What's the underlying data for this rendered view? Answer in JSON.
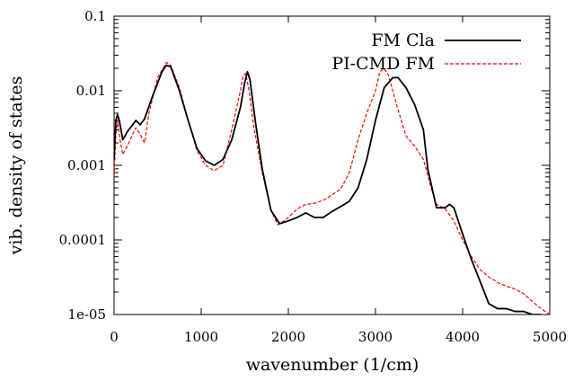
{
  "chart_data": {
    "type": "line",
    "title": "",
    "xlabel": "wavenumber (1/cm)",
    "ylabel": "vib. density of states",
    "xlim": [
      0,
      5000
    ],
    "ylim": [
      1e-05,
      0.1
    ],
    "yscale": "log",
    "grid": false,
    "legend_position": "top-right",
    "x_ticks": [
      0,
      1000,
      2000,
      3000,
      4000,
      5000
    ],
    "x_tick_labels": [
      "0",
      "1000",
      "2000",
      "3000",
      "4000",
      "5000"
    ],
    "y_ticks": [
      1e-05,
      0.0001,
      0.001,
      0.01,
      0.1
    ],
    "y_tick_labels": [
      "1e-05",
      "0.0001",
      "0.001",
      "0.01",
      "0.1"
    ],
    "series": [
      {
        "name": "FM Cla",
        "color": "#000000",
        "style": "solid",
        "points": [
          [
            0,
            0.0012
          ],
          [
            20,
            0.004
          ],
          [
            40,
            0.0048
          ],
          [
            60,
            0.004
          ],
          [
            100,
            0.0022
          ],
          [
            150,
            0.0028
          ],
          [
            250,
            0.004
          ],
          [
            300,
            0.0035
          ],
          [
            350,
            0.0042
          ],
          [
            450,
            0.009
          ],
          [
            550,
            0.018
          ],
          [
            600,
            0.022
          ],
          [
            650,
            0.021
          ],
          [
            750,
            0.01
          ],
          [
            850,
            0.004
          ],
          [
            950,
            0.0017
          ],
          [
            1050,
            0.00115
          ],
          [
            1150,
            0.001
          ],
          [
            1250,
            0.0012
          ],
          [
            1350,
            0.0022
          ],
          [
            1450,
            0.006
          ],
          [
            1500,
            0.013
          ],
          [
            1530,
            0.018
          ],
          [
            1560,
            0.014
          ],
          [
            1620,
            0.004
          ],
          [
            1700,
            0.0009
          ],
          [
            1800,
            0.00025
          ],
          [
            1900,
            0.000165
          ],
          [
            2000,
            0.00018
          ],
          [
            2100,
            0.0002
          ],
          [
            2200,
            0.00023
          ],
          [
            2300,
            0.0002
          ],
          [
            2400,
            0.0002
          ],
          [
            2500,
            0.00024
          ],
          [
            2600,
            0.00028
          ],
          [
            2700,
            0.00033
          ],
          [
            2800,
            0.0005
          ],
          [
            2900,
            0.0012
          ],
          [
            3000,
            0.004
          ],
          [
            3100,
            0.011
          ],
          [
            3200,
            0.015
          ],
          [
            3260,
            0.015
          ],
          [
            3350,
            0.011
          ],
          [
            3450,
            0.0065
          ],
          [
            3550,
            0.003
          ],
          [
            3600,
            0.0009
          ],
          [
            3700,
            0.00027
          ],
          [
            3800,
            0.00027
          ],
          [
            3850,
            0.0003
          ],
          [
            3900,
            0.00027
          ],
          [
            4000,
            0.00012
          ],
          [
            4100,
            5.5e-05
          ],
          [
            4200,
            2.8e-05
          ],
          [
            4300,
            1.4e-05
          ],
          [
            4400,
            1.2e-05
          ],
          [
            4500,
            1.2e-05
          ],
          [
            4600,
            1.1e-05
          ],
          [
            4700,
            1.1e-05
          ],
          [
            4800,
            1e-05
          ],
          [
            4900,
            1e-05
          ]
        ]
      },
      {
        "name": "PI-CMD FM",
        "color": "#ff0000",
        "style": "dashed",
        "points": [
          [
            0,
            0.0007
          ],
          [
            20,
            0.0025
          ],
          [
            40,
            0.004
          ],
          [
            60,
            0.0025
          ],
          [
            100,
            0.0014
          ],
          [
            150,
            0.0018
          ],
          [
            250,
            0.0032
          ],
          [
            300,
            0.0026
          ],
          [
            350,
            0.002
          ],
          [
            400,
            0.005
          ],
          [
            500,
            0.015
          ],
          [
            600,
            0.024
          ],
          [
            650,
            0.022
          ],
          [
            750,
            0.011
          ],
          [
            850,
            0.004
          ],
          [
            950,
            0.0016
          ],
          [
            1050,
            0.001
          ],
          [
            1150,
            0.00085
          ],
          [
            1250,
            0.001
          ],
          [
            1350,
            0.003
          ],
          [
            1450,
            0.01
          ],
          [
            1480,
            0.016
          ],
          [
            1510,
            0.017
          ],
          [
            1550,
            0.01
          ],
          [
            1600,
            0.0035
          ],
          [
            1700,
            0.0008
          ],
          [
            1800,
            0.00025
          ],
          [
            1880,
            0.00016
          ],
          [
            1950,
            0.00018
          ],
          [
            2000,
            0.0002
          ],
          [
            2100,
            0.00026
          ],
          [
            2200,
            0.0003
          ],
          [
            2300,
            0.00031
          ],
          [
            2400,
            0.00034
          ],
          [
            2500,
            0.0004
          ],
          [
            2600,
            0.00048
          ],
          [
            2700,
            0.0008
          ],
          [
            2800,
            0.0022
          ],
          [
            2900,
            0.005
          ],
          [
            3000,
            0.01
          ],
          [
            3050,
            0.018
          ],
          [
            3100,
            0.02
          ],
          [
            3150,
            0.016
          ],
          [
            3250,
            0.006
          ],
          [
            3350,
            0.0025
          ],
          [
            3450,
            0.0018
          ],
          [
            3550,
            0.0012
          ],
          [
            3650,
            0.00045
          ],
          [
            3700,
            0.0003
          ],
          [
            3800,
            0.00026
          ],
          [
            3900,
            0.00018
          ],
          [
            4000,
            0.0001
          ],
          [
            4100,
            6e-05
          ],
          [
            4200,
            4e-05
          ],
          [
            4300,
            3.2e-05
          ],
          [
            4400,
            2.7e-05
          ],
          [
            4500,
            2.4e-05
          ],
          [
            4600,
            2.2e-05
          ],
          [
            4700,
            1.9e-05
          ],
          [
            4800,
            1.5e-05
          ],
          [
            4900,
            1.2e-05
          ],
          [
            5000,
            1e-05
          ]
        ]
      }
    ]
  }
}
